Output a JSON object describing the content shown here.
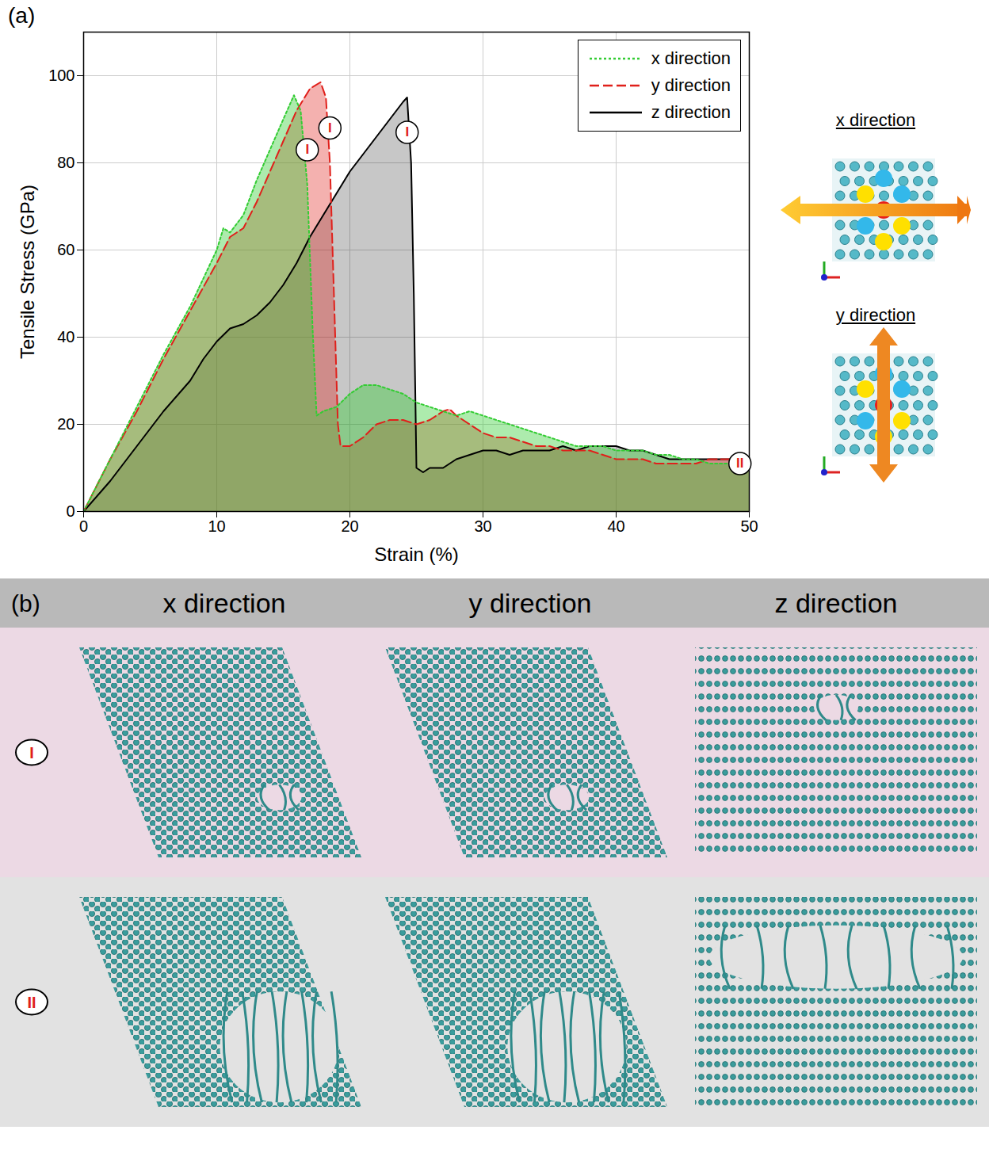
{
  "chart_data": {
    "type": "line",
    "panel_label": "(a)",
    "x_label": "Strain (%)",
    "y_label": "Tensile Stress (GPa)",
    "xlim": [
      0,
      50
    ],
    "ylim": [
      0,
      110
    ],
    "xticks": [
      0,
      10,
      20,
      30,
      40,
      50
    ],
    "yticks": [
      0,
      20,
      40,
      60,
      80,
      100
    ],
    "grid": true,
    "legend": "top-right",
    "series": [
      {
        "name": "x direction",
        "color": "#33cc33",
        "line_style": "dotted",
        "x": [
          0,
          2,
          4,
          6,
          8,
          10,
          10.5,
          11,
          12,
          13,
          14,
          15,
          15.8,
          16.3,
          16.8,
          17.2,
          17.5,
          18,
          19,
          20,
          21,
          22,
          23,
          24,
          25,
          26,
          27,
          28,
          29,
          30,
          31,
          32,
          33,
          34,
          35,
          36,
          37,
          38,
          39,
          40,
          41,
          42,
          43,
          44,
          45,
          46,
          47,
          48,
          49,
          50
        ],
        "values": [
          0,
          12,
          24,
          36,
          47,
          60,
          65,
          64,
          68,
          76,
          83,
          90,
          95.5,
          92,
          75,
          42,
          22,
          23,
          24,
          27,
          29,
          29,
          28,
          27,
          25,
          24,
          23,
          22,
          23,
          22,
          21,
          20,
          19,
          18,
          17,
          16,
          15,
          15,
          15,
          14,
          14,
          14,
          13,
          13,
          12,
          12,
          11,
          11,
          11,
          10
        ]
      },
      {
        "name": "y direction",
        "color": "#e0201b",
        "line_style": "dashed",
        "x": [
          0,
          2,
          4,
          6,
          8,
          10,
          11,
          11.5,
          12,
          13,
          14,
          15,
          16,
          17,
          17.8,
          18.2,
          18.5,
          18.8,
          19.1,
          19.3,
          20,
          21,
          22,
          23,
          24,
          25,
          26,
          27,
          27.5,
          28,
          29,
          30,
          31,
          32,
          33,
          34,
          35,
          36,
          37,
          38,
          39,
          40,
          41,
          42,
          43,
          44,
          45,
          46,
          47,
          48,
          49,
          50
        ],
        "values": [
          0,
          12,
          23,
          35,
          46,
          57,
          63,
          64,
          65,
          71,
          78,
          85,
          92,
          97,
          98.5,
          95,
          80,
          50,
          20,
          15,
          15,
          17,
          20,
          21,
          21,
          20,
          21,
          23,
          23.5,
          22,
          20,
          18,
          17,
          17,
          16,
          15,
          15,
          14,
          14,
          14,
          13,
          12,
          12,
          12,
          11,
          11,
          11,
          11,
          12,
          12,
          12,
          12
        ]
      },
      {
        "name": "z direction",
        "color": "#000000",
        "line_style": "solid",
        "x": [
          0,
          2,
          4,
          6,
          8,
          9,
          10,
          11,
          12,
          13,
          14,
          15,
          16,
          17,
          18,
          19,
          20,
          21,
          22,
          23,
          24,
          24.3,
          24.6,
          24.8,
          25,
          25.5,
          26,
          27,
          28,
          29,
          30,
          31,
          32,
          33,
          34,
          35,
          36,
          37,
          38,
          39,
          40,
          41,
          42,
          43,
          44,
          45,
          46,
          47,
          48,
          49,
          50
        ],
        "values": [
          0,
          7,
          15,
          23,
          30,
          35,
          39,
          42,
          43,
          45,
          48,
          52,
          57,
          63,
          68,
          73,
          78,
          82,
          86,
          90,
          94,
          95,
          80,
          50,
          10,
          9,
          10,
          10,
          12,
          13,
          14,
          14,
          13,
          14,
          14,
          14,
          15,
          14,
          15,
          15,
          15,
          14,
          14,
          13,
          12,
          12,
          12,
          12,
          12,
          12,
          12
        ]
      }
    ],
    "annotations": [
      {
        "text": "I",
        "x": 16.8,
        "y": 83
      },
      {
        "text": "I",
        "x": 18.5,
        "y": 88
      },
      {
        "text": "I",
        "x": 24.3,
        "y": 87
      },
      {
        "text": "II",
        "x": 49.3,
        "y": 11
      }
    ],
    "insets": [
      {
        "title": "x direction"
      },
      {
        "title": "y direction"
      }
    ]
  },
  "panel_b": {
    "label": "(b)",
    "columns": [
      "x direction",
      "y direction",
      "z direction"
    ],
    "rows": [
      "I",
      "II"
    ]
  }
}
